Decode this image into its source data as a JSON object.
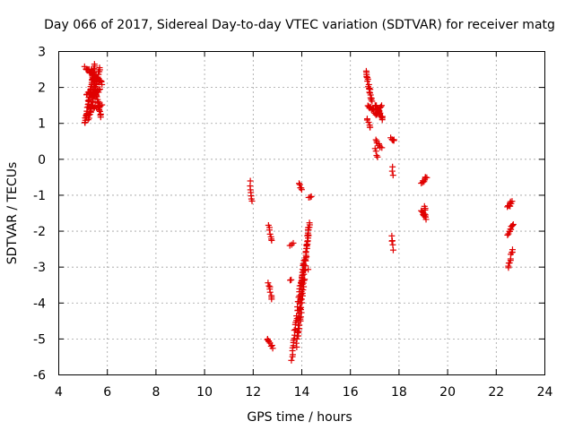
{
  "chart_data": {
    "type": "scatter",
    "title": "Day 066 of 2017, Sidereal Day-to-day VTEC variation (SDTVAR) for receiver matg",
    "xlabel": "GPS time / hours",
    "ylabel": "SDTVAR / TECUs",
    "xlim": [
      4,
      24
    ],
    "ylim": [
      -6,
      3
    ],
    "xticks": [
      4,
      6,
      8,
      10,
      12,
      14,
      16,
      18,
      20,
      22,
      24
    ],
    "yticks": [
      -6,
      -5,
      -4,
      -3,
      -2,
      -1,
      0,
      1,
      2,
      3
    ],
    "grid": true,
    "marker": "+",
    "color": "#e00000",
    "segments": [
      {
        "x0": 5.1,
        "y0": 1.0,
        "x1": 5.5,
        "y1": 2.6,
        "n": 45
      },
      {
        "x0": 5.25,
        "y0": 1.1,
        "x1": 5.7,
        "y1": 2.5,
        "n": 40
      },
      {
        "x0": 5.35,
        "y0": 2.5,
        "x1": 5.75,
        "y1": 1.2,
        "n": 35
      },
      {
        "x0": 5.1,
        "y0": 2.55,
        "x1": 5.8,
        "y1": 2.1,
        "n": 30
      },
      {
        "x0": 5.15,
        "y0": 1.8,
        "x1": 5.7,
        "y1": 1.9,
        "n": 20
      },
      {
        "x0": 5.3,
        "y0": 1.4,
        "x1": 5.8,
        "y1": 1.5,
        "n": 12
      },
      {
        "x0": 11.9,
        "y0": -0.65,
        "x1": 11.98,
        "y1": -1.2,
        "n": 7
      },
      {
        "x0": 12.65,
        "y0": -1.85,
        "x1": 12.78,
        "y1": -2.3,
        "n": 7
      },
      {
        "x0": 12.65,
        "y0": -3.45,
        "x1": 12.8,
        "y1": -3.9,
        "n": 8
      },
      {
        "x0": 12.6,
        "y0": -5.0,
        "x1": 12.8,
        "y1": -5.25,
        "n": 8
      },
      {
        "x0": 13.6,
        "y0": -5.6,
        "x1": 14.0,
        "y1": -3.3,
        "n": 30
      },
      {
        "x0": 13.8,
        "y0": -5.2,
        "x1": 14.1,
        "y1": -2.8,
        "n": 30
      },
      {
        "x0": 13.9,
        "y0": -4.9,
        "x1": 14.3,
        "y1": -1.9,
        "n": 35
      },
      {
        "x0": 14.0,
        "y0": -3.5,
        "x1": 14.35,
        "y1": -1.8,
        "n": 25
      },
      {
        "x0": 13.55,
        "y0": -2.4,
        "x1": 13.65,
        "y1": -2.35,
        "n": 3
      },
      {
        "x0": 13.55,
        "y0": -3.35,
        "x1": 13.6,
        "y1": -3.35,
        "n": 2
      },
      {
        "x0": 13.9,
        "y0": -0.7,
        "x1": 14.0,
        "y1": -0.85,
        "n": 5
      },
      {
        "x0": 14.3,
        "y0": -1.05,
        "x1": 14.4,
        "y1": -1.05,
        "n": 3
      },
      {
        "x0": 14.3,
        "y0": -3.1,
        "x1": 14.3,
        "y1": -3.1,
        "n": 1
      },
      {
        "x0": 16.65,
        "y0": 2.45,
        "x1": 16.9,
        "y1": 1.6,
        "n": 20
      },
      {
        "x0": 16.75,
        "y0": 1.5,
        "x1": 17.0,
        "y1": 1.3,
        "n": 10
      },
      {
        "x0": 16.7,
        "y0": 1.1,
        "x1": 16.85,
        "y1": 0.85,
        "n": 6
      },
      {
        "x0": 17.05,
        "y0": 1.5,
        "x1": 17.35,
        "y1": 1.1,
        "n": 18
      },
      {
        "x0": 17.05,
        "y0": 1.2,
        "x1": 17.3,
        "y1": 1.45,
        "n": 10
      },
      {
        "x0": 17.05,
        "y0": 0.5,
        "x1": 17.3,
        "y1": 0.3,
        "n": 8
      },
      {
        "x0": 17.05,
        "y0": 0.25,
        "x1": 17.15,
        "y1": 0.05,
        "n": 4
      },
      {
        "x0": 17.7,
        "y0": 0.6,
        "x1": 17.8,
        "y1": 0.5,
        "n": 6
      },
      {
        "x0": 17.75,
        "y0": -0.25,
        "x1": 17.75,
        "y1": -0.45,
        "n": 3
      },
      {
        "x0": 17.7,
        "y0": -2.15,
        "x1": 17.8,
        "y1": -2.5,
        "n": 5
      },
      {
        "x0": 18.95,
        "y0": -0.7,
        "x1": 19.15,
        "y1": -0.5,
        "n": 8
      },
      {
        "x0": 18.95,
        "y0": -1.45,
        "x1": 19.15,
        "y1": -1.65,
        "n": 10
      },
      {
        "x0": 19.05,
        "y0": -1.3,
        "x1": 19.1,
        "y1": -1.4,
        "n": 3
      },
      {
        "x0": 22.5,
        "y0": -1.35,
        "x1": 22.65,
        "y1": -1.2,
        "n": 8
      },
      {
        "x0": 22.5,
        "y0": -2.1,
        "x1": 22.7,
        "y1": -1.8,
        "n": 10
      },
      {
        "x0": 22.5,
        "y0": -3.05,
        "x1": 22.7,
        "y1": -2.5,
        "n": 10
      }
    ]
  }
}
